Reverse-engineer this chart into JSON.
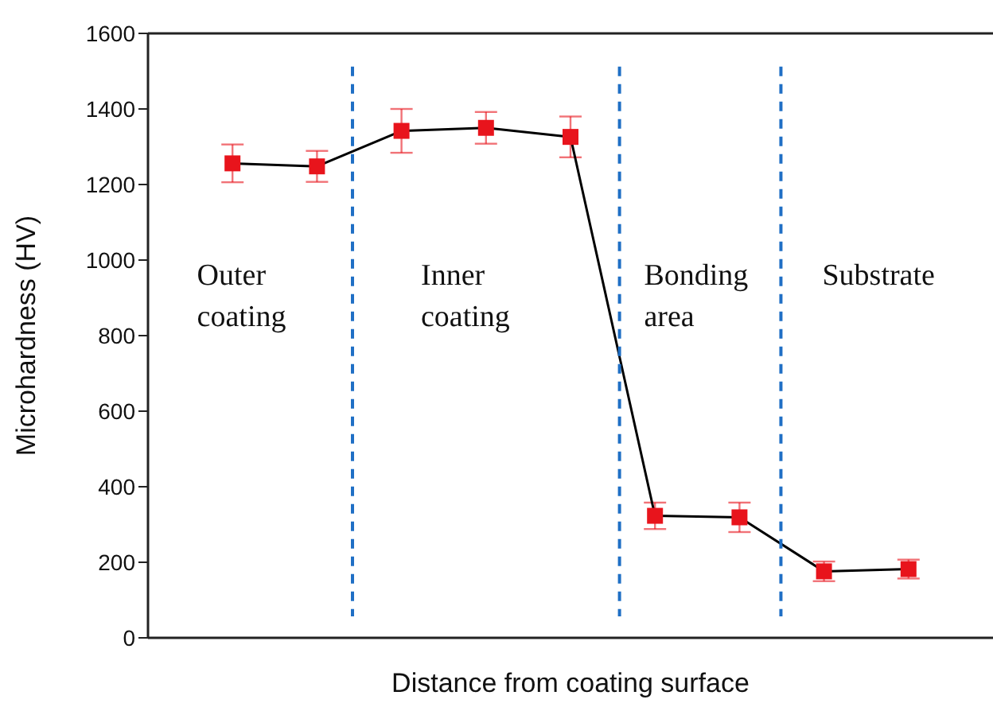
{
  "chart_data": {
    "type": "line",
    "xlabel": "Distance from coating surface",
    "ylabel": "Microhardness (HV)",
    "categories": [
      null,
      null,
      null,
      null,
      null,
      null,
      null,
      null,
      null
    ],
    "ylim": [
      0,
      1600
    ],
    "yticks": [
      0,
      200,
      400,
      600,
      800,
      1000,
      1200,
      1400,
      1600
    ],
    "tick_labels": "y",
    "grid": false,
    "legend": false,
    "marker": "square",
    "line_style": "solid",
    "series": [
      {
        "color": "#000000",
        "colors": [
          "#e8141c",
          "#e8141c",
          "#e8141c",
          "#e8141c",
          "#e8141c",
          "#e8141c",
          "#e8141c",
          "#e8141c",
          "#e8141c"
        ],
        "values": [
          1256,
          1248,
          1342,
          1350,
          1326,
          323,
          319,
          176,
          182
        ],
        "errors": [
          50,
          41,
          58,
          42,
          54,
          35,
          39,
          26,
          25
        ]
      }
    ],
    "annotations": [
      "Outer coating",
      "Inner coating",
      "Bonding area",
      "Substrate"
    ]
  }
}
